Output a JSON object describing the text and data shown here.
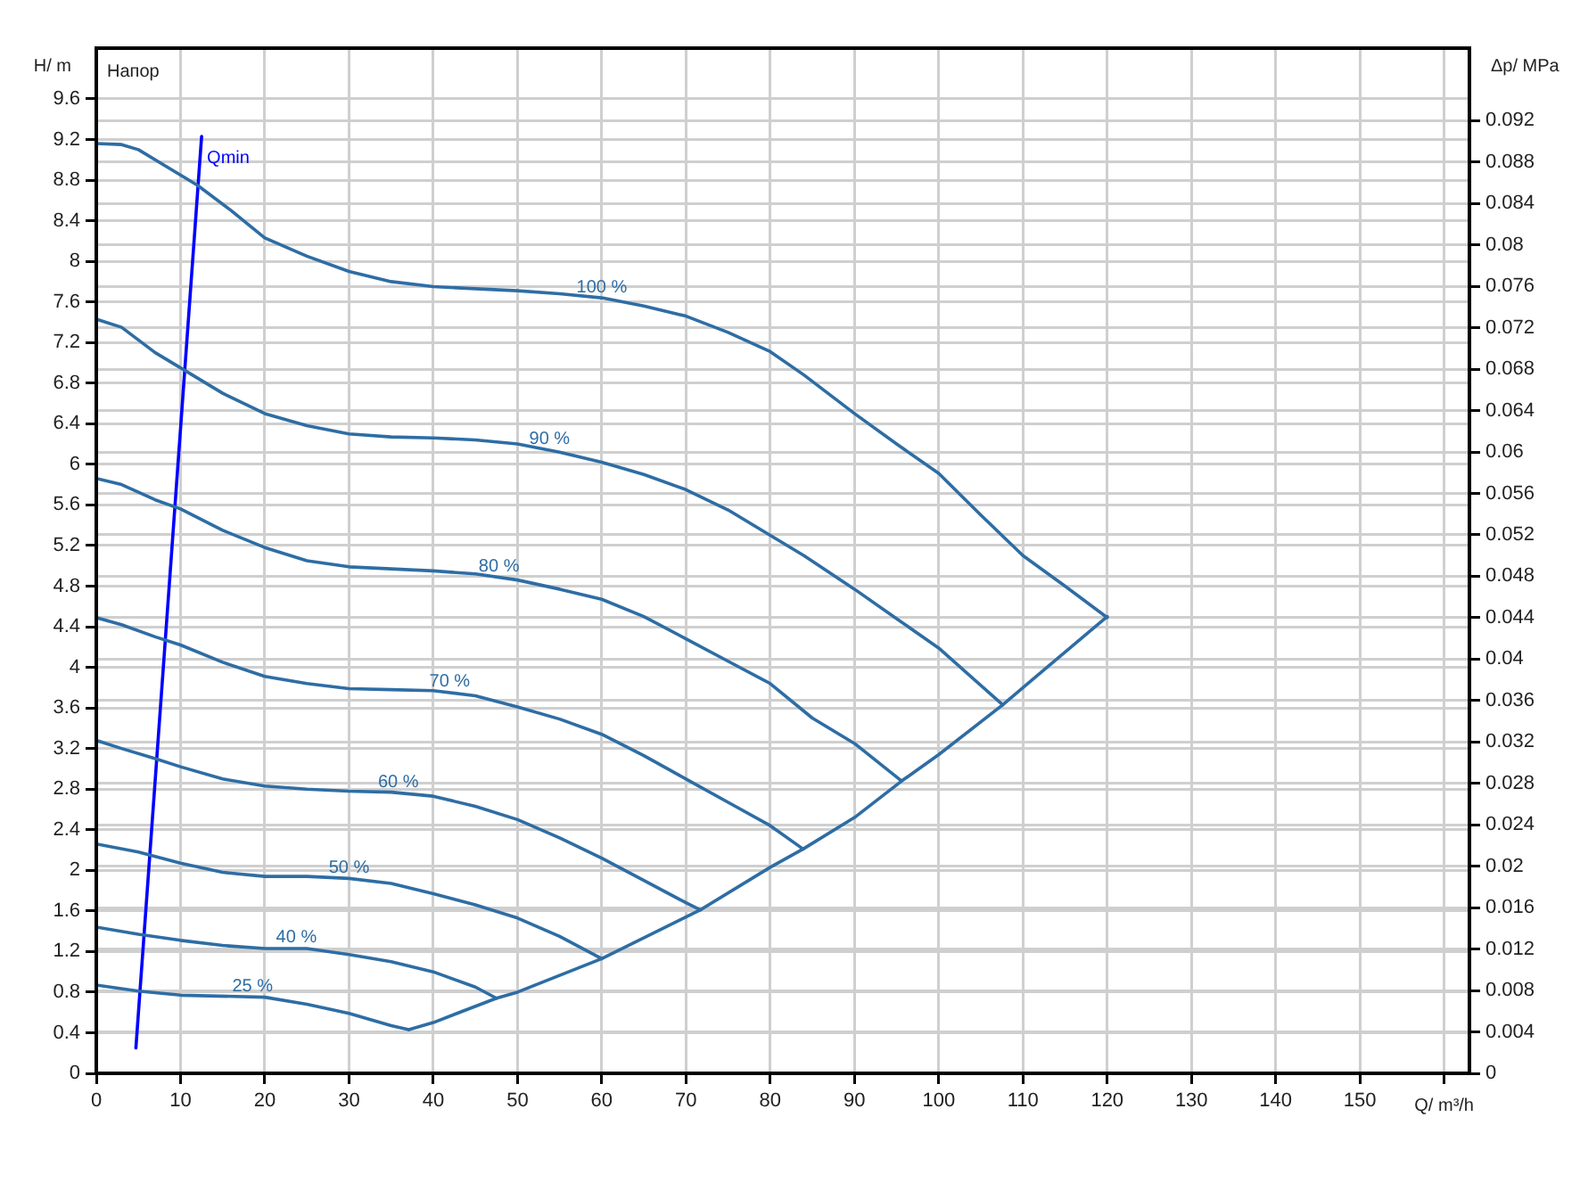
{
  "chart_data": {
    "type": "line",
    "xlabel": "Q/ m³/h",
    "ylabel": "H/ m",
    "y2label": "Δp/ MPa",
    "xlim": [
      0,
      163
    ],
    "ylim": [
      0,
      10.1
    ],
    "y2lim": [
      0,
      0.099
    ],
    "xticks": [
      0,
      10,
      20,
      30,
      40,
      50,
      60,
      70,
      80,
      90,
      100,
      110,
      120,
      130,
      140,
      150,
      {
        "value": 160,
        "label": null
      }
    ],
    "yticks": [
      0,
      0.4,
      0.8,
      1.2,
      1.6,
      2,
      2.4,
      2.8,
      3.2,
      3.6,
      4,
      4.4,
      4.8,
      5.2,
      5.6,
      6,
      6.4,
      6.8,
      7.2,
      7.6,
      8,
      8.4,
      8.8,
      9.2,
      9.6
    ],
    "y2ticks": [
      0,
      0.004,
      0.008,
      0.012,
      0.016,
      0.02,
      0.024,
      0.028,
      0.032,
      0.036,
      0.04,
      0.044,
      0.048,
      0.052,
      0.056,
      0.06,
      0.064,
      0.068,
      0.072,
      0.076,
      0.08,
      0.084,
      0.088,
      0.092
    ],
    "grid": true,
    "legend": false,
    "marker": "none",
    "line_style": "solid",
    "series": [
      {
        "name": "100 %",
        "color": "#2e6da4",
        "x": [
          0,
          3,
          5,
          8,
          12,
          16,
          20,
          25,
          30,
          35,
          40,
          45,
          50,
          55,
          60,
          65,
          70,
          75,
          80,
          84,
          90,
          95,
          100,
          105,
          110,
          115,
          120
        ],
        "values": [
          9.16,
          9.15,
          9.1,
          8.95,
          8.75,
          8.5,
          8.23,
          8.05,
          7.9,
          7.8,
          7.75,
          7.73,
          7.71,
          7.68,
          7.64,
          7.56,
          7.46,
          7.3,
          7.11,
          6.88,
          6.5,
          6.2,
          5.91,
          5.5,
          5.1,
          4.8,
          4.49
        ]
      },
      {
        "name": "90 %",
        "color": "#2e6da4",
        "x": [
          0,
          3,
          7,
          10,
          15,
          20,
          25,
          30,
          35,
          40,
          45,
          50,
          55,
          60,
          65,
          70,
          75,
          80,
          84,
          90,
          95,
          100,
          107.6
        ],
        "values": [
          7.43,
          7.35,
          7.1,
          6.95,
          6.7,
          6.5,
          6.38,
          6.3,
          6.27,
          6.26,
          6.24,
          6.2,
          6.12,
          6.02,
          5.9,
          5.75,
          5.55,
          5.3,
          5.1,
          4.77,
          4.48,
          4.19,
          3.63
        ]
      },
      {
        "name": "80 %",
        "color": "#2e6da4",
        "x": [
          0,
          3,
          7,
          10,
          15,
          20,
          25,
          30,
          40,
          45,
          50,
          55,
          60,
          65,
          70,
          75,
          80,
          85,
          90,
          95.6
        ],
        "values": [
          5.86,
          5.8,
          5.65,
          5.56,
          5.35,
          5.18,
          5.05,
          4.99,
          4.95,
          4.92,
          4.86,
          4.77,
          4.67,
          4.5,
          4.28,
          4.06,
          3.84,
          3.5,
          3.25,
          2.88
        ]
      },
      {
        "name": "70 %",
        "color": "#2e6da4",
        "x": [
          0,
          3,
          7,
          10,
          15,
          20,
          25,
          30,
          35,
          40,
          45,
          50,
          55,
          60,
          65,
          70,
          75,
          80,
          83.9
        ],
        "values": [
          4.49,
          4.42,
          4.3,
          4.22,
          4.05,
          3.91,
          3.84,
          3.79,
          3.78,
          3.77,
          3.72,
          3.61,
          3.49,
          3.34,
          3.13,
          2.9,
          2.67,
          2.44,
          2.21
        ]
      },
      {
        "name": "60 %",
        "color": "#2e6da4",
        "x": [
          0,
          3,
          7,
          10,
          15,
          20,
          25,
          30,
          35,
          40,
          45,
          50,
          55,
          60,
          65,
          70,
          71.7
        ],
        "values": [
          3.28,
          3.2,
          3.1,
          3.02,
          2.9,
          2.83,
          2.8,
          2.78,
          2.77,
          2.73,
          2.63,
          2.5,
          2.32,
          2.12,
          1.9,
          1.68,
          1.61
        ]
      },
      {
        "name": "50 %",
        "color": "#2e6da4",
        "x": [
          0,
          5,
          10,
          15,
          20,
          25,
          30,
          35,
          40,
          45,
          50,
          55,
          60
        ],
        "values": [
          2.26,
          2.18,
          2.07,
          1.98,
          1.94,
          1.94,
          1.92,
          1.87,
          1.77,
          1.66,
          1.53,
          1.35,
          1.13
        ]
      },
      {
        "name": "40 %",
        "color": "#2e6da4",
        "x": [
          0,
          5,
          10,
          15,
          20,
          25,
          30,
          35,
          40,
          45,
          47.5
        ],
        "values": [
          1.44,
          1.37,
          1.31,
          1.26,
          1.23,
          1.23,
          1.17,
          1.1,
          1.0,
          0.85,
          0.74
        ]
      },
      {
        "name": "25 %",
        "color": "#2e6da4",
        "x": [
          0,
          5,
          10,
          20,
          25,
          30,
          35,
          37.1
        ],
        "values": [
          0.87,
          0.81,
          0.77,
          0.75,
          0.68,
          0.59,
          0.47,
          0.43
        ]
      },
      {
        "color": "#2e6da4",
        "x": [
          37.1,
          40,
          47.5,
          50,
          60,
          70,
          71.7,
          80,
          83.9,
          90,
          95.6,
          100,
          107.6,
          110,
          120
        ],
        "values": [
          0.43,
          0.5,
          0.74,
          0.8,
          1.13,
          1.54,
          1.61,
          2.03,
          2.21,
          2.52,
          2.88,
          3.14,
          3.63,
          3.8,
          4.5
        ]
      },
      {
        "name": "Qmin",
        "color": "#0000ff",
        "x": [
          4.7,
          12.5
        ],
        "values": [
          0.25,
          9.23
        ]
      }
    ],
    "annotations": [
      "Напор"
    ]
  }
}
